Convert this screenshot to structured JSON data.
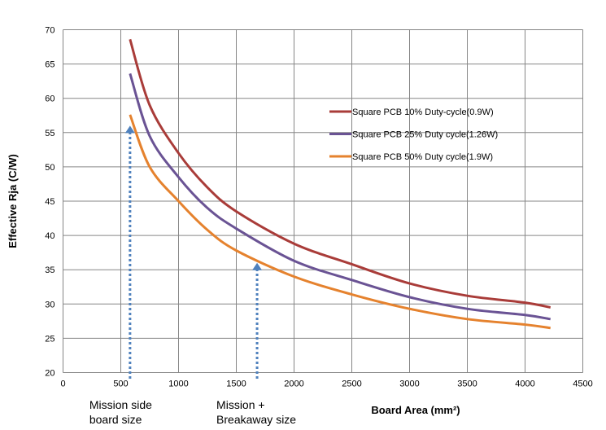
{
  "chart_data": {
    "type": "line",
    "title": "",
    "xlabel": "Board Area (mm²)",
    "ylabel": "Effective Rja (C/W)",
    "xlim": [
      0,
      4500
    ],
    "ylim": [
      20,
      70
    ],
    "xticks": [
      0,
      500,
      1000,
      1500,
      2000,
      2500,
      3000,
      3500,
      4000,
      4500
    ],
    "yticks": [
      20,
      25,
      30,
      35,
      40,
      45,
      50,
      55,
      60,
      65,
      70
    ],
    "grid": true,
    "legend_position": "right",
    "series": [
      {
        "name": "Square PCB 10% Duty-cycle(0.9W)",
        "color": "#a93c39",
        "x": [
          580,
          750,
          1000,
          1250,
          1500,
          2000,
          2500,
          3000,
          3500,
          4000,
          4220
        ],
        "y": [
          68.6,
          59.0,
          52.0,
          47.0,
          43.5,
          38.8,
          35.8,
          33.0,
          31.2,
          30.2,
          29.5
        ]
      },
      {
        "name": "Square PCB 25% Duty cycle(1.26W)",
        "color": "#6a5394",
        "x": [
          580,
          750,
          1000,
          1250,
          1500,
          2000,
          2500,
          3000,
          3500,
          4000,
          4220
        ],
        "y": [
          63.6,
          54.5,
          48.5,
          44.0,
          41.0,
          36.3,
          33.5,
          31.0,
          29.3,
          28.4,
          27.8
        ]
      },
      {
        "name": "Square PCB 50% Duty cycle(1.9W)",
        "color": "#e5822e",
        "x": [
          580,
          750,
          1000,
          1250,
          1500,
          2000,
          2500,
          3000,
          3500,
          4000,
          4220
        ],
        "y": [
          57.6,
          50.0,
          45.0,
          40.8,
          37.8,
          34.0,
          31.4,
          29.3,
          27.8,
          27.0,
          26.5
        ]
      }
    ],
    "annotations": [
      {
        "text": [
          "Mission side",
          "board size"
        ],
        "x": 580,
        "y_tip": 56,
        "color": "#4f81bd"
      },
      {
        "text": [
          "Mission +",
          "Breakaway size"
        ],
        "x": 1680,
        "y_tip": 36,
        "color": "#4f81bd"
      }
    ]
  }
}
